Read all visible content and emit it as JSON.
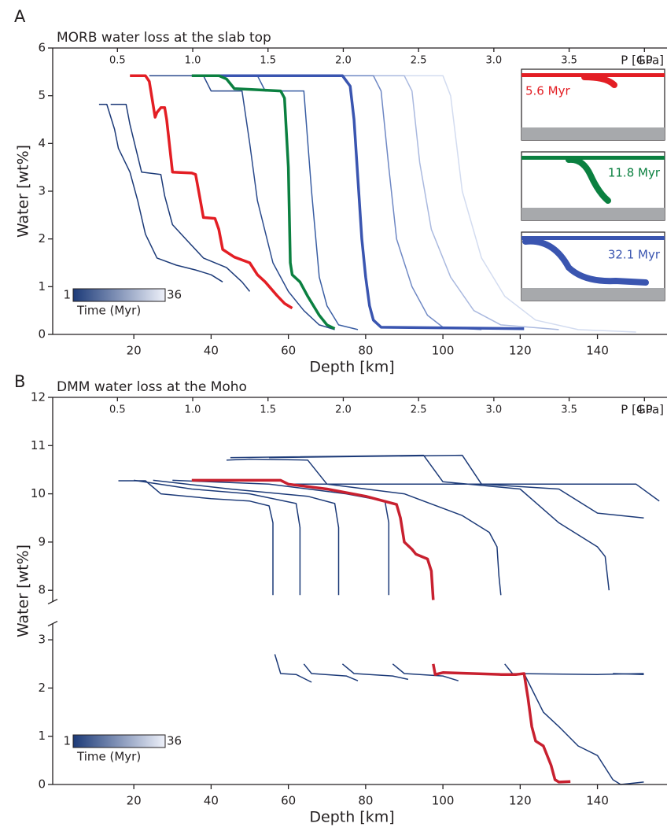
{
  "chart_data": [
    {
      "type": "line",
      "panel_label": "A",
      "title": "MORB water loss at the slab top",
      "xlabel": "Depth [km]",
      "ylabel": "Water [wt%]",
      "x2label": "P [GPa]",
      "xlim": [
        -1,
        158
      ],
      "ylim": [
        0,
        6
      ],
      "x2lim": [
        0.07,
        4.15
      ],
      "xticks": [
        20,
        40,
        60,
        80,
        100,
        120,
        140
      ],
      "yticks": [
        0,
        1,
        2,
        3,
        4,
        5,
        6
      ],
      "x2ticks": [
        0.5,
        {
          "value": 1,
          "label": "1.0"
        },
        1.5,
        {
          "value": 2,
          "label": "2.0"
        },
        2.5,
        {
          "value": 3,
          "label": "3.0"
        },
        3.5,
        {
          "value": 4,
          "label": "4.0"
        }
      ],
      "colorbar": {
        "colors": [
          "#1c3a78",
          "#eef1fa"
        ],
        "min": 1,
        "max": 36,
        "label": "Time (Myr)"
      },
      "insets": [
        {
          "label": "5.6 Myr",
          "color": "#e31e24"
        },
        {
          "label": "11.8 Myr",
          "color": "#0b8040"
        },
        {
          "label": "32.1 Myr",
          "color": "#3a55b0"
        }
      ],
      "series": [
        {
          "color": "#d3dcf0",
          "width": 1.5,
          "x": [
            70,
            100,
            102,
            105,
            110,
            116,
            124,
            135,
            150
          ],
          "values": [
            5.42,
            5.42,
            5.0,
            3.0,
            1.6,
            0.8,
            0.3,
            0.1,
            0.05
          ]
        },
        {
          "color": "#aab9df",
          "width": 1.5,
          "x": [
            60,
            90,
            92,
            94,
            97,
            102,
            108,
            115,
            130
          ],
          "values": [
            5.42,
            5.42,
            5.1,
            3.6,
            2.2,
            1.2,
            0.5,
            0.2,
            0.1
          ]
        },
        {
          "color": "#6f88c4",
          "width": 1.5,
          "x": [
            50,
            82,
            84,
            86,
            88,
            92,
            96,
            100,
            110
          ],
          "values": [
            5.42,
            5.42,
            5.1,
            3.5,
            2.0,
            1.0,
            0.4,
            0.15,
            0.1
          ]
        },
        {
          "color": "#3a5ea3",
          "width": 1.5,
          "x": [
            30,
            52,
            54,
            64,
            66,
            68,
            70,
            73,
            78
          ],
          "values": [
            5.42,
            5.42,
            5.1,
            5.1,
            3.0,
            1.2,
            0.6,
            0.2,
            0.1
          ]
        },
        {
          "color": "#2a4a8c",
          "width": 1.5,
          "x": [
            24,
            38,
            40,
            48,
            50,
            52,
            56,
            60,
            64,
            68,
            72
          ],
          "values": [
            5.42,
            5.42,
            5.1,
            5.1,
            4.0,
            2.8,
            1.5,
            0.9,
            0.5,
            0.2,
            0.1
          ]
        },
        {
          "color": "#1c3a78",
          "width": 1.5,
          "x": [
            14,
            18,
            19,
            22,
            27,
            28,
            30,
            34,
            38,
            44,
            48,
            50
          ],
          "values": [
            4.82,
            4.82,
            4.4,
            3.4,
            3.35,
            2.9,
            2.3,
            1.95,
            1.6,
            1.4,
            1.1,
            0.9
          ]
        },
        {
          "color": "#1c3a78",
          "width": 1.5,
          "x": [
            11,
            13,
            15,
            16,
            19,
            21,
            23,
            26,
            31,
            36,
            40,
            43
          ],
          "values": [
            4.82,
            4.82,
            4.3,
            3.9,
            3.4,
            2.8,
            2.1,
            1.6,
            1.45,
            1.35,
            1.25,
            1.1
          ]
        },
        {
          "color": "#3a55b0",
          "width": 3.5,
          "x": [
            42,
            74,
            76,
            77,
            79,
            80,
            81,
            82,
            84,
            121
          ],
          "values": [
            5.42,
            5.42,
            5.2,
            4.5,
            2.0,
            1.2,
            0.6,
            0.3,
            0.15,
            0.12
          ]
        },
        {
          "color": "#0b8040",
          "width": 3.5,
          "x": [
            35,
            42,
            44,
            46,
            58,
            59,
            60,
            60.5,
            61,
            63,
            65,
            68,
            70,
            72
          ],
          "values": [
            5.42,
            5.42,
            5.35,
            5.15,
            5.1,
            4.95,
            3.5,
            1.5,
            1.25,
            1.1,
            0.8,
            0.4,
            0.2,
            0.12
          ]
        },
        {
          "color": "#e31e24",
          "width": 3.5,
          "x": [
            19,
            23,
            24,
            25.5,
            26,
            27,
            28,
            28.5,
            30,
            35,
            36,
            37,
            38,
            41,
            42,
            43,
            46,
            50,
            52,
            54,
            57,
            59,
            61
          ],
          "values": [
            5.42,
            5.42,
            5.3,
            4.55,
            4.65,
            4.75,
            4.75,
            4.5,
            3.4,
            3.38,
            3.35,
            2.9,
            2.45,
            2.43,
            2.2,
            1.78,
            1.62,
            1.5,
            1.25,
            1.1,
            0.82,
            0.65,
            0.55
          ]
        }
      ]
    },
    {
      "type": "line",
      "panel_label": "B",
      "title": "DMM water loss at the Moho",
      "xlabel": "Depth [km]",
      "ylabel": "Water [wt%]",
      "x2label": "P [GPa]",
      "xlim": [
        -1,
        158
      ],
      "ylim": [
        0,
        12
      ],
      "y_break": [
        3.4,
        7.7
      ],
      "x2lim": [
        0.07,
        4.15
      ],
      "xticks": [
        20,
        40,
        60,
        80,
        100,
        120,
        140
      ],
      "yticks": [
        0,
        1,
        2,
        3,
        8,
        9,
        10,
        11,
        12
      ],
      "x2ticks": [
        0.5,
        {
          "value": 1,
          "label": "1.0"
        },
        1.5,
        {
          "value": 2,
          "label": "2.0"
        },
        2.5,
        {
          "value": 3,
          "label": "3.0"
        },
        3.5,
        {
          "value": 4,
          "label": "4.0"
        }
      ],
      "colorbar": {
        "colors": [
          "#1c3a78",
          "#eef1fa"
        ],
        "min": 1,
        "max": 36,
        "label": "Time (Myr)"
      },
      "series": [
        {
          "color": "#1c3a78",
          "width": 1.5,
          "x": [
            16,
            23,
            27,
            40,
            50,
            55,
            56,
            56,
            56,
            56.5,
            58,
            62,
            66
          ],
          "values": [
            10.27,
            10.27,
            10.0,
            9.9,
            9.85,
            9.75,
            9.4,
            7.9,
            null,
            2.7,
            2.3,
            2.28,
            2.12
          ]
        },
        {
          "color": "#1c3a78",
          "width": 1.5,
          "x": [
            20,
            35,
            50,
            62,
            63,
            63,
            63,
            64,
            66,
            75,
            78
          ],
          "values": [
            10.28,
            10.1,
            10.0,
            9.8,
            9.3,
            7.9,
            null,
            2.5,
            2.3,
            2.25,
            2.15
          ]
        },
        {
          "color": "#1c3a78",
          "width": 1.5,
          "x": [
            25,
            45,
            65,
            72,
            73,
            73,
            73,
            74,
            77,
            87,
            91
          ],
          "values": [
            10.28,
            10.1,
            9.95,
            9.8,
            9.3,
            7.9,
            null,
            2.5,
            2.3,
            2.25,
            2.18
          ]
        },
        {
          "color": "#1c3a78",
          "width": 1.5,
          "x": [
            30,
            55,
            75,
            85,
            86,
            86,
            86,
            87,
            90,
            100,
            104
          ],
          "values": [
            10.28,
            10.2,
            10.0,
            9.85,
            9.4,
            7.9,
            null,
            2.5,
            2.3,
            2.25,
            2.15
          ]
        },
        {
          "color": "#1c3a78",
          "width": 1.5,
          "x": [
            44,
            50,
            65,
            70,
            90,
            105,
            112,
            114,
            114.5,
            115,
            115,
            116,
            118,
            140,
            152
          ],
          "values": [
            10.7,
            10.72,
            10.7,
            10.2,
            10.0,
            9.55,
            9.2,
            8.9,
            8.3,
            7.9,
            null,
            2.5,
            2.3,
            2.28,
            2.3
          ]
        },
        {
          "color": "#1c3a78",
          "width": 1.5,
          "x": [
            45,
            95,
            100,
            120,
            130,
            140,
            142,
            143,
            143,
            144,
            152
          ],
          "values": [
            10.75,
            10.8,
            10.25,
            10.1,
            9.4,
            8.9,
            8.7,
            8.0,
            null,
            2.3,
            2.28
          ]
        },
        {
          "color": "#1c3a78",
          "width": 1.5,
          "x": [
            55,
            105,
            110,
            130,
            140,
            152
          ],
          "values": [
            10.75,
            10.8,
            10.2,
            10.1,
            9.6,
            9.5
          ]
        },
        {
          "color": "#1c3a78",
          "width": 1.5,
          "x": [
            60,
            150,
            156
          ],
          "values": [
            10.2,
            10.2,
            9.85
          ]
        },
        {
          "color": "#1c3a78",
          "width": 1.5,
          "x": [
            121,
            126,
            130,
            135,
            140,
            144,
            146,
            152
          ],
          "values": [
            2.3,
            1.5,
            1.2,
            0.8,
            0.6,
            0.1,
            0.0,
            0.05
          ]
        },
        {
          "color": "#c8202f",
          "width": 3.5,
          "x": [
            35,
            58,
            60,
            70,
            80,
            88,
            89,
            90,
            92,
            93,
            96,
            97,
            97.5,
            97.5,
            97.5,
            98,
            100,
            115,
            119,
            121,
            122,
            123,
            124,
            126,
            128,
            129,
            130,
            133
          ],
          "values": [
            10.28,
            10.28,
            10.2,
            10.1,
            9.95,
            9.78,
            9.5,
            9.0,
            8.85,
            8.75,
            8.65,
            8.4,
            7.8,
            null,
            2.5,
            2.28,
            2.32,
            2.28,
            2.28,
            2.3,
            1.8,
            1.2,
            0.9,
            0.8,
            0.4,
            0.1,
            0.05,
            0.06
          ]
        }
      ]
    }
  ]
}
